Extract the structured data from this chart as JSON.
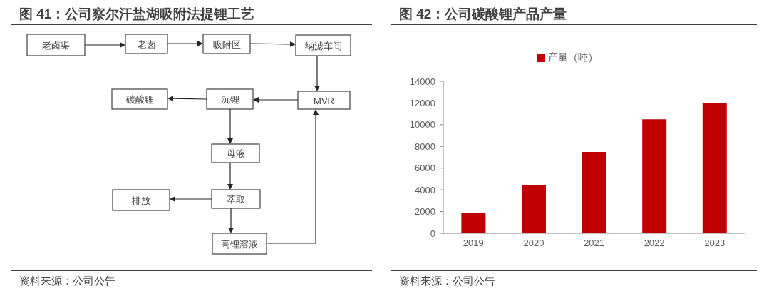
{
  "chart_data": [
    {
      "type": "other",
      "title": "图 41：公司察尔汗盐湖吸附法提锂工艺",
      "annotations": [
        "老卤渠",
        "老卤",
        "吸附区",
        "纳滤车间",
        "MVR",
        "沉锂",
        "碳酸锂",
        "母液",
        "萃取",
        "排放",
        "高锂溶液",
        "资料来源：公司公告"
      ]
    },
    {
      "type": "bar",
      "title": "图 42：公司碳酸锂产品产量",
      "categories": [
        "2019",
        "2020",
        "2021",
        "2022",
        "2023"
      ],
      "series": [
        {
          "name": "产量（吨）",
          "color": "#c00000",
          "values": [
            1850,
            4400,
            7500,
            10500,
            12000
          ]
        }
      ],
      "ylim": [
        0,
        14000
      ],
      "yticks": [
        0,
        2000,
        4000,
        6000,
        8000,
        10000,
        12000,
        14000
      ],
      "legend": "top",
      "annotations": [
        "资料来源：公司公告"
      ]
    }
  ]
}
